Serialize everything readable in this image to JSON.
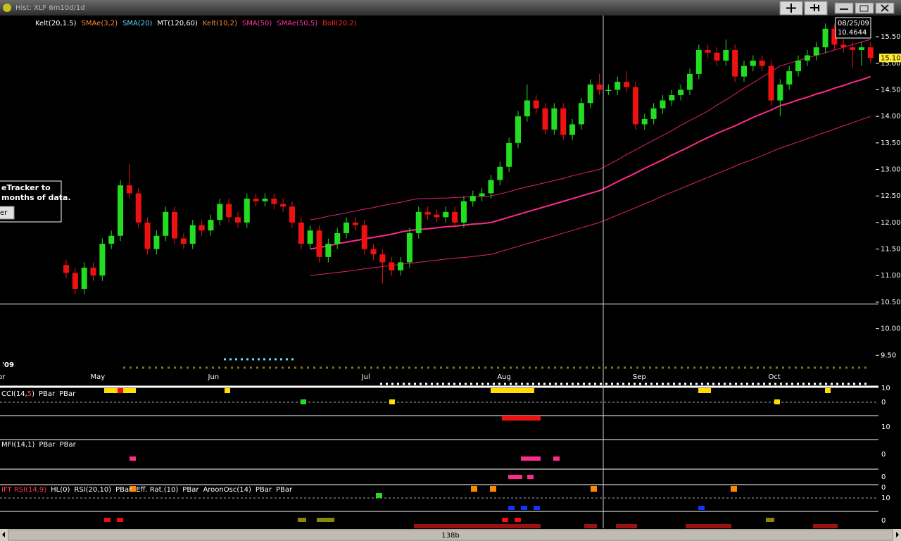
{
  "window": {
    "title": "Hist: XLF 6m10d/1d"
  },
  "popup": {
    "lines": [
      "eTracker to",
      "months of data."
    ],
    "button": "er"
  },
  "cursor": {
    "date": "08/25/09",
    "price_label": "10.4644",
    "price": 10.4644
  },
  "scrollbar": {
    "label": "138b"
  },
  "panels": [
    {
      "labels": [
        {
          "text": "CCI(14,",
          "color": "#ffffff"
        },
        {
          "text": "5",
          "color": "#ff4444"
        },
        {
          "text": ")",
          "color": "#ffffff"
        },
        {
          "text": "PBar",
          "color": "#ffffff"
        },
        {
          "text": "PBar",
          "color": "#ffffff"
        }
      ],
      "axis_labels": [
        "10",
        "0",
        "10"
      ]
    },
    {
      "labels": [
        {
          "text": "MFI(14,1)",
          "color": "#ffffff"
        },
        {
          "text": "PBar",
          "color": "#ffffff"
        },
        {
          "text": "PBar",
          "color": "#ffffff"
        }
      ],
      "axis_labels": [
        "0",
        "0"
      ]
    },
    {
      "labels": [
        {
          "text": "IFT RSI(14,9)",
          "color": "#ff3355"
        },
        {
          "text": "HL(0)",
          "color": "#ffffff"
        },
        {
          "text": "RSI(20,10)",
          "color": "#ffffff"
        },
        {
          "text": "PBar",
          "color": "#ffffff"
        },
        {
          "text": "Eff. Rat.(10)",
          "color": "#ffffff"
        },
        {
          "text": "PBar",
          "color": "#ffffff"
        },
        {
          "text": "AroonOsc(14)",
          "color": "#ffffff"
        },
        {
          "text": "PBar",
          "color": "#ffffff"
        },
        {
          "text": "PBar",
          "color": "#ffffff"
        }
      ],
      "axis_labels": [
        "0",
        "10",
        "0"
      ]
    }
  ],
  "chart_data": {
    "type": "candlestick",
    "indicators": [
      {
        "name": "Kelt(20,1.5)",
        "color": "#ffffff"
      },
      {
        "name": "SMAe(3,2)",
        "color": "#ff8833"
      },
      {
        "name": "SMA(20)",
        "color": "#55ddff"
      },
      {
        "name": "MT(120,60)",
        "color": "#ffffff"
      },
      {
        "name": "Kelt(10,2)",
        "color": "#ff8833"
      },
      {
        "name": "SMA(50)",
        "color": "#ff3399"
      },
      {
        "name": "SMAe(50,5)",
        "color": "#ff3399"
      },
      {
        "name": "Boll(20,2)",
        "color": "#ff2222"
      }
    ],
    "year_label": "'09",
    "start_label": "Apr",
    "categories": [
      null,
      null,
      null,
      "May",
      null,
      null,
      null,
      null,
      null,
      null,
      null,
      null,
      null,
      null,
      null,
      null,
      "Jun",
      null,
      null,
      null,
      null,
      null,
      null,
      null,
      null,
      null,
      null,
      null,
      null,
      null,
      null,
      null,
      null,
      "Jul",
      null,
      null,
      null,
      null,
      null,
      null,
      null,
      null,
      null,
      null,
      null,
      null,
      null,
      null,
      "Aug",
      null,
      null,
      null,
      null,
      null,
      null,
      null,
      null,
      null,
      null,
      null,
      null,
      null,
      null,
      "Sep",
      null,
      null,
      null,
      null,
      null,
      null,
      null,
      null,
      null,
      null,
      null,
      null,
      null,
      null,
      "Oct",
      null,
      null,
      null,
      null,
      null,
      null,
      null,
      null,
      null,
      null,
      null
    ],
    "open": [
      11.2,
      11.05,
      10.75,
      11.15,
      11.0,
      11.6,
      11.75,
      12.7,
      12.55,
      12.0,
      11.5,
      11.75,
      12.2,
      11.7,
      11.6,
      11.95,
      11.85,
      12.05,
      12.35,
      12.1,
      12.0,
      12.45,
      12.4,
      12.45,
      12.35,
      12.3,
      12.0,
      11.6,
      11.85,
      11.35,
      11.6,
      11.8,
      12.0,
      11.95,
      11.5,
      11.4,
      11.25,
      11.1,
      11.25,
      11.8,
      12.2,
      12.15,
      12.1,
      12.2,
      12.0,
      12.4,
      12.5,
      12.55,
      12.8,
      13.05,
      13.5,
      14.0,
      14.3,
      14.15,
      13.75,
      14.15,
      13.65,
      13.85,
      14.25,
      14.6,
      14.5,
      14.5,
      14.65,
      14.55,
      13.85,
      13.95,
      14.15,
      14.3,
      14.4,
      14.5,
      14.8,
      15.25,
      15.2,
      15.05,
      15.25,
      14.75,
      14.95,
      15.05,
      14.95,
      14.3,
      14.6,
      14.85,
      15.05,
      15.15,
      15.3,
      15.65,
      15.35,
      15.3,
      15.25,
      15.3
    ],
    "high": [
      11.3,
      11.15,
      11.25,
      11.25,
      11.7,
      11.85,
      12.8,
      13.1,
      12.65,
      12.1,
      11.85,
      12.3,
      12.3,
      11.8,
      12.05,
      12.05,
      12.15,
      12.45,
      12.45,
      12.2,
      12.55,
      12.55,
      12.55,
      12.55,
      12.45,
      12.4,
      12.1,
      11.95,
      11.95,
      11.7,
      11.9,
      12.1,
      12.1,
      12.05,
      11.6,
      11.5,
      11.35,
      11.35,
      11.9,
      12.3,
      12.3,
      12.25,
      12.3,
      12.3,
      12.5,
      12.6,
      12.65,
      12.9,
      13.15,
      13.6,
      14.1,
      14.6,
      14.4,
      14.25,
      14.25,
      14.25,
      13.95,
      14.35,
      14.7,
      14.8,
      14.6,
      14.75,
      14.85,
      14.65,
      14.05,
      14.25,
      14.4,
      14.5,
      14.6,
      14.9,
      15.35,
      15.35,
      15.3,
      15.45,
      15.35,
      15.05,
      15.15,
      15.15,
      15.05,
      14.7,
      14.95,
      15.15,
      15.25,
      15.4,
      15.75,
      15.75,
      15.45,
      15.4,
      15.4,
      15.4
    ],
    "low": [
      10.95,
      10.65,
      10.65,
      10.9,
      10.9,
      11.5,
      11.65,
      12.45,
      11.9,
      11.4,
      11.4,
      11.65,
      11.6,
      11.5,
      11.5,
      11.75,
      11.75,
      11.95,
      12.0,
      11.9,
      11.9,
      12.3,
      12.3,
      12.25,
      12.2,
      11.9,
      11.5,
      11.5,
      11.25,
      11.25,
      11.5,
      11.7,
      11.85,
      11.4,
      11.3,
      10.85,
      11.0,
      11.0,
      11.15,
      11.7,
      12.05,
      12.0,
      12.0,
      11.9,
      11.9,
      12.3,
      12.4,
      12.45,
      12.7,
      12.95,
      13.4,
      13.9,
      14.05,
      13.65,
      13.65,
      13.55,
      13.55,
      13.75,
      14.15,
      14.4,
      14.4,
      14.4,
      14.45,
      13.75,
      13.75,
      13.85,
      14.05,
      14.2,
      14.3,
      14.4,
      14.7,
      15.1,
      14.95,
      14.95,
      14.65,
      14.65,
      14.85,
      14.85,
      14.2,
      14.0,
      14.5,
      14.75,
      14.95,
      15.05,
      15.2,
      15.25,
      15.2,
      14.9,
      14.95,
      15.0
    ],
    "close": [
      11.05,
      10.75,
      11.15,
      11.0,
      11.6,
      11.75,
      12.7,
      12.55,
      12.0,
      11.5,
      11.75,
      12.2,
      11.7,
      11.6,
      11.95,
      11.85,
      12.05,
      12.35,
      12.1,
      12.0,
      12.45,
      12.4,
      12.45,
      12.35,
      12.3,
      12.0,
      11.6,
      11.85,
      11.35,
      11.6,
      11.8,
      12.0,
      11.95,
      11.5,
      11.4,
      11.25,
      11.1,
      11.25,
      11.8,
      12.2,
      12.15,
      12.1,
      12.2,
      12.0,
      12.4,
      12.5,
      12.55,
      12.8,
      13.05,
      13.5,
      14.0,
      14.3,
      14.15,
      13.75,
      14.15,
      13.65,
      13.85,
      14.25,
      14.6,
      14.5,
      14.5,
      14.65,
      14.55,
      13.85,
      13.95,
      14.15,
      14.3,
      14.4,
      14.5,
      14.8,
      15.25,
      15.2,
      15.05,
      15.25,
      14.75,
      14.95,
      15.05,
      14.95,
      14.3,
      14.6,
      14.85,
      15.05,
      15.15,
      15.3,
      15.65,
      15.35,
      15.3,
      15.25,
      15.3,
      15.1
    ],
    "up_color": "#22dd22",
    "down_color": "#ee1111",
    "overlays": [
      {
        "color": "#ff2a8a",
        "width": 2,
        "values": [
          null,
          null,
          null,
          null,
          null,
          null,
          null,
          null,
          null,
          null,
          null,
          null,
          null,
          null,
          null,
          null,
          null,
          null,
          null,
          null,
          null,
          null,
          null,
          null,
          null,
          null,
          null,
          11.5,
          11.53,
          11.56,
          11.6,
          11.63,
          11.66,
          11.69,
          11.72,
          11.75,
          11.78,
          11.82,
          11.85,
          11.87,
          11.88,
          11.9,
          11.92,
          11.93,
          11.95,
          11.97,
          11.98,
          12.0,
          12.05,
          12.1,
          12.15,
          12.2,
          12.25,
          12.3,
          12.35,
          12.4,
          12.45,
          12.5,
          12.55,
          12.6,
          12.68,
          12.77,
          12.85,
          12.93,
          13.02,
          13.1,
          13.18,
          13.27,
          13.35,
          13.43,
          13.52,
          13.6,
          13.68,
          13.75,
          13.82,
          13.9,
          13.98,
          14.05,
          14.12,
          14.2,
          14.25,
          14.31,
          14.36,
          14.42,
          14.47,
          14.53,
          14.58,
          14.64,
          14.69,
          14.75
        ]
      },
      {
        "color": "#e0207a",
        "width": 1,
        "values": [
          null,
          null,
          null,
          null,
          null,
          null,
          null,
          null,
          null,
          null,
          null,
          null,
          null,
          null,
          null,
          null,
          null,
          null,
          null,
          null,
          null,
          null,
          null,
          null,
          null,
          null,
          null,
          12.05,
          12.08,
          12.12,
          12.15,
          12.18,
          12.22,
          12.25,
          12.28,
          12.32,
          12.35,
          12.38,
          12.42,
          12.45,
          12.45,
          12.46,
          12.46,
          12.47,
          12.48,
          12.48,
          12.49,
          12.5,
          12.54,
          12.58,
          12.63,
          12.67,
          12.71,
          12.75,
          12.79,
          12.83,
          12.88,
          12.92,
          12.96,
          13.0,
          13.09,
          13.18,
          13.28,
          13.37,
          13.46,
          13.55,
          13.64,
          13.73,
          13.83,
          13.92,
          14.01,
          14.1,
          14.21,
          14.31,
          14.42,
          14.53,
          14.63,
          14.74,
          14.84,
          14.95,
          15.0,
          15.05,
          15.1,
          15.15,
          15.2,
          15.25,
          15.3,
          15.35,
          15.4,
          15.45
        ]
      },
      {
        "color": "#e0207a",
        "width": 1,
        "values": [
          null,
          null,
          null,
          null,
          null,
          null,
          null,
          null,
          null,
          null,
          null,
          null,
          null,
          null,
          null,
          null,
          null,
          null,
          null,
          null,
          null,
          null,
          null,
          null,
          null,
          null,
          null,
          11.0,
          11.02,
          11.04,
          11.06,
          11.08,
          11.1,
          11.13,
          11.15,
          11.17,
          11.19,
          11.21,
          11.23,
          11.25,
          11.27,
          11.29,
          11.31,
          11.33,
          11.34,
          11.36,
          11.38,
          11.4,
          11.45,
          11.5,
          11.55,
          11.6,
          11.65,
          11.7,
          11.75,
          11.8,
          11.85,
          11.9,
          11.95,
          12.0,
          12.07,
          12.14,
          12.21,
          12.28,
          12.35,
          12.42,
          12.5,
          12.57,
          12.64,
          12.71,
          12.78,
          12.85,
          12.92,
          12.99,
          13.06,
          13.13,
          13.19,
          13.26,
          13.33,
          13.4,
          13.46,
          13.52,
          13.58,
          13.64,
          13.7,
          13.76,
          13.82,
          13.88,
          13.94,
          14.0
        ]
      }
    ],
    "last_price": {
      "value": 15.1,
      "label": "15.10"
    },
    "ylim": [
      8.92,
      15.82
    ],
    "yticks": [
      {
        "value": 15.5,
        "label": "15.50"
      },
      {
        "value": 15,
        "label": "15.00"
      },
      {
        "value": 14.5,
        "label": "14.50"
      },
      {
        "value": 14,
        "label": "14.00"
      },
      {
        "value": 13.5,
        "label": "13.50"
      },
      {
        "value": 13,
        "label": "13.00"
      },
      {
        "value": 12.5,
        "label": "12.50"
      },
      {
        "value": 12,
        "label": "12.00"
      },
      {
        "value": 11.5,
        "label": "11.50"
      },
      {
        "value": 11,
        "label": "11.00"
      },
      {
        "value": 10.5,
        "label": "10.50"
      },
      {
        "value": 10,
        "label": "10.00"
      },
      {
        "value": 9.5,
        "label": "9.50"
      }
    ]
  }
}
